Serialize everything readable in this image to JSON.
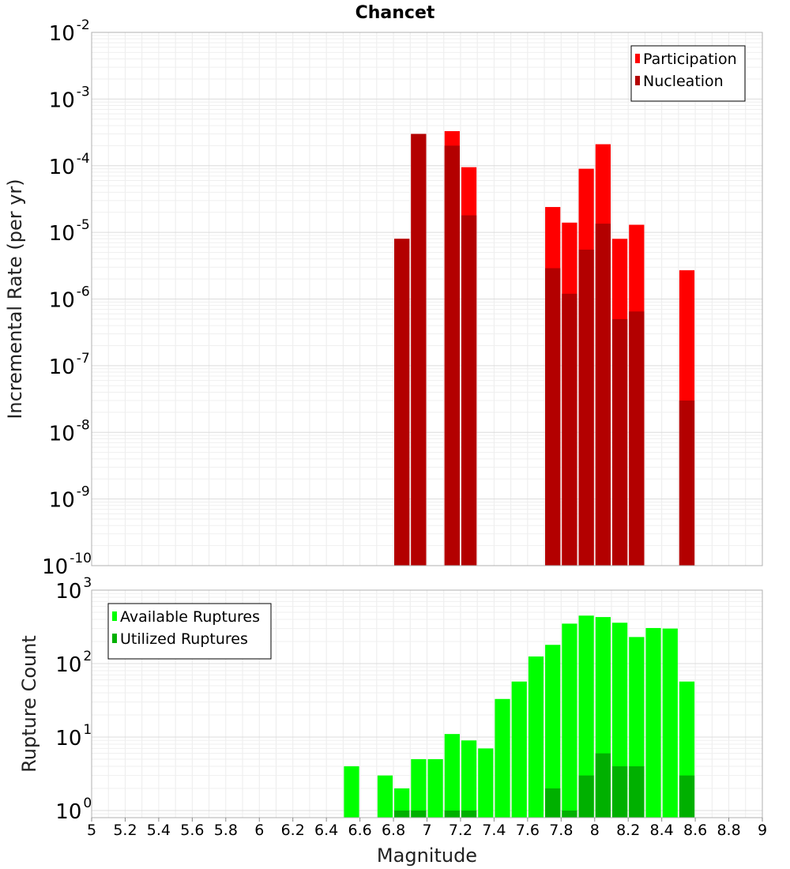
{
  "chart_data": [
    {
      "type": "bar",
      "title": "Chancet",
      "xlabel": "",
      "ylabel": "Incremental Rate (per yr)",
      "yscale": "log",
      "xlim": [
        5,
        9
      ],
      "ylim": [
        1e-10,
        0.01
      ],
      "grid": true,
      "legend_position": "top-right",
      "bar_width": 0.1,
      "yticks": [
        {
          "base": "10",
          "exp": "-2",
          "value": 0.01
        },
        {
          "base": "10",
          "exp": "-3",
          "value": 0.001
        },
        {
          "base": "10",
          "exp": "-4",
          "value": 0.0001
        },
        {
          "base": "10",
          "exp": "-5",
          "value": 1e-05
        },
        {
          "base": "10",
          "exp": "-6",
          "value": 1e-06
        },
        {
          "base": "10",
          "exp": "-7",
          "value": 1e-07
        },
        {
          "base": "10",
          "exp": "-8",
          "value": 1e-08
        },
        {
          "base": "10",
          "exp": "-9",
          "value": 1e-09
        },
        {
          "base": "10",
          "exp": "-10",
          "value": 1e-10
        }
      ],
      "series": [
        {
          "name": "Participation",
          "color": "#ff0000",
          "x": [
            6.85,
            6.95,
            7.15,
            7.25,
            7.75,
            7.85,
            7.95,
            8.05,
            8.15,
            8.25,
            8.55
          ],
          "values": [
            8e-06,
            0.0003,
            0.00033,
            9.5e-05,
            2.4e-05,
            1.4e-05,
            9e-05,
            0.00021,
            8e-06,
            1.3e-05,
            2.7e-06
          ]
        },
        {
          "name": "Nucleation",
          "color": "#b30000",
          "x": [
            6.85,
            6.95,
            7.15,
            7.25,
            7.75,
            7.85,
            7.95,
            8.05,
            8.15,
            8.25,
            8.55
          ],
          "values": [
            8e-06,
            0.0003,
            0.0002,
            1.8e-05,
            2.9e-06,
            1.2e-06,
            5.5e-06,
            1.35e-05,
            5e-07,
            6.5e-07,
            3e-08
          ]
        }
      ]
    },
    {
      "type": "bar",
      "title": "",
      "xlabel": "Magnitude",
      "ylabel": "Rupture Count",
      "yscale": "log",
      "xlim": [
        5,
        9
      ],
      "ylim": [
        0.8,
        1000
      ],
      "grid": true,
      "legend_position": "top-left",
      "bar_width": 0.1,
      "xticks": [
        "5",
        "5.2",
        "5.4",
        "5.6",
        "5.8",
        "6",
        "6.2",
        "6.4",
        "6.6",
        "6.8",
        "7",
        "7.2",
        "7.4",
        "7.6",
        "7.8",
        "8",
        "8.2",
        "8.4",
        "8.6",
        "8.8",
        "9"
      ],
      "yticks": [
        {
          "base": "10",
          "exp": "3",
          "value": 1000
        },
        {
          "base": "10",
          "exp": "2",
          "value": 100
        },
        {
          "base": "10",
          "exp": "1",
          "value": 10
        },
        {
          "base": "10",
          "exp": "0",
          "value": 1
        }
      ],
      "series": [
        {
          "name": "Available Ruptures",
          "color": "#00ff00",
          "x": [
            6.55,
            6.75,
            6.85,
            6.95,
            7.05,
            7.15,
            7.25,
            7.35,
            7.45,
            7.55,
            7.65,
            7.75,
            7.85,
            7.95,
            8.05,
            8.15,
            8.25,
            8.35,
            8.45,
            8.55
          ],
          "values": [
            4,
            3,
            2,
            5,
            5,
            11,
            9,
            7,
            33,
            57,
            125,
            180,
            350,
            450,
            430,
            360,
            230,
            305,
            300,
            57
          ]
        },
        {
          "name": "Utilized Ruptures",
          "color": "#00b000",
          "x": [
            6.85,
            6.95,
            7.15,
            7.25,
            7.75,
            7.85,
            7.95,
            8.05,
            8.15,
            8.25,
            8.55
          ],
          "values": [
            1,
            1,
            1,
            1,
            2,
            1,
            3,
            6,
            4,
            4,
            3
          ]
        }
      ]
    }
  ]
}
